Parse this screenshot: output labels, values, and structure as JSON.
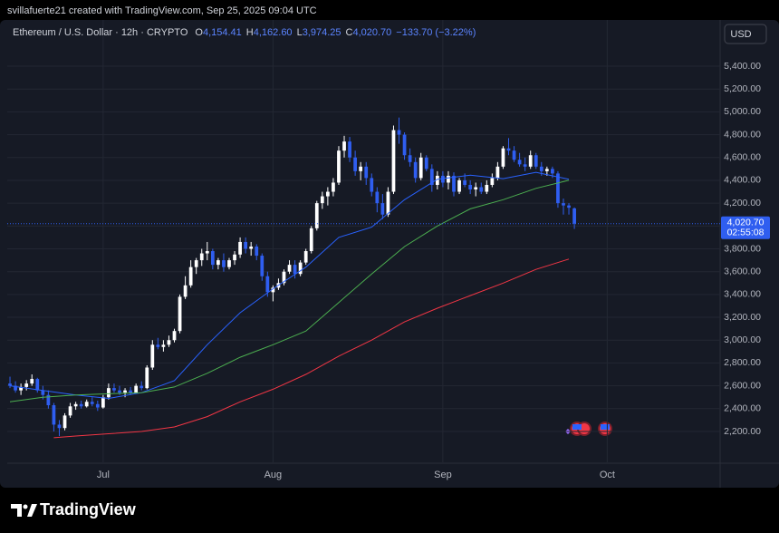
{
  "header": {
    "attribution": "svillafuerte21 created with TradingView.com, Sep 25, 2025 09:04 UTC"
  },
  "chart_data": {
    "type": "candlestick",
    "symbol": "Ethereum / U.S. Dollar · 12h · CRYPTO",
    "ohlc_legend": [
      {
        "key": "O",
        "value": "4,154.41"
      },
      {
        "key": "H",
        "value": "4,162.60"
      },
      {
        "key": "L",
        "value": "3,974.25"
      },
      {
        "key": "C",
        "value": "4,020.70"
      }
    ],
    "change": "−133.70 (−3.22%)",
    "currency": "USD",
    "up_color": "#ffffff",
    "down_color": "#2f5ef0",
    "candles": [
      [
        2620,
        2680,
        2580,
        2600
      ],
      [
        2600,
        2640,
        2540,
        2560
      ],
      [
        2560,
        2620,
        2520,
        2590
      ],
      [
        2590,
        2650,
        2560,
        2620
      ],
      [
        2620,
        2700,
        2600,
        2660
      ],
      [
        2660,
        2670,
        2540,
        2560
      ],
      [
        2560,
        2600,
        2480,
        2520
      ],
      [
        2520,
        2560,
        2400,
        2430
      ],
      [
        2430,
        2450,
        2200,
        2260
      ],
      [
        2260,
        2300,
        2160,
        2230
      ],
      [
        2230,
        2360,
        2210,
        2340
      ],
      [
        2340,
        2450,
        2320,
        2420
      ],
      [
        2420,
        2460,
        2390,
        2440
      ],
      [
        2440,
        2470,
        2400,
        2420
      ],
      [
        2420,
        2480,
        2410,
        2460
      ],
      [
        2460,
        2500,
        2420,
        2440
      ],
      [
        2440,
        2470,
        2380,
        2410
      ],
      [
        2410,
        2520,
        2400,
        2500
      ],
      [
        2500,
        2620,
        2480,
        2580
      ],
      [
        2580,
        2620,
        2540,
        2560
      ],
      [
        2560,
        2600,
        2520,
        2540
      ],
      [
        2540,
        2580,
        2500,
        2560
      ],
      [
        2560,
        2590,
        2520,
        2540
      ],
      [
        2540,
        2620,
        2530,
        2600
      ],
      [
        2600,
        2640,
        2560,
        2580
      ],
      [
        2580,
        2780,
        2570,
        2760
      ],
      [
        2760,
        3000,
        2740,
        2960
      ],
      [
        2960,
        3020,
        2920,
        2940
      ],
      [
        2940,
        3000,
        2900,
        2960
      ],
      [
        2960,
        3040,
        2940,
        3000
      ],
      [
        3000,
        3100,
        2980,
        3080
      ],
      [
        3080,
        3400,
        3060,
        3380
      ],
      [
        3380,
        3560,
        3360,
        3480
      ],
      [
        3480,
        3700,
        3460,
        3640
      ],
      [
        3640,
        3720,
        3580,
        3700
      ],
      [
        3700,
        3800,
        3650,
        3760
      ],
      [
        3760,
        3860,
        3700,
        3780
      ],
      [
        3780,
        3800,
        3620,
        3660
      ],
      [
        3660,
        3720,
        3620,
        3700
      ],
      [
        3700,
        3760,
        3600,
        3640
      ],
      [
        3640,
        3720,
        3620,
        3700
      ],
      [
        3700,
        3780,
        3660,
        3750
      ],
      [
        3750,
        3900,
        3720,
        3860
      ],
      [
        3860,
        3900,
        3760,
        3800
      ],
      [
        3800,
        3860,
        3740,
        3820
      ],
      [
        3820,
        3840,
        3700,
        3740
      ],
      [
        3740,
        3760,
        3520,
        3560
      ],
      [
        3560,
        3600,
        3380,
        3420
      ],
      [
        3420,
        3480,
        3340,
        3460
      ],
      [
        3460,
        3540,
        3440,
        3500
      ],
      [
        3500,
        3620,
        3480,
        3600
      ],
      [
        3600,
        3700,
        3580,
        3660
      ],
      [
        3660,
        3700,
        3540,
        3580
      ],
      [
        3580,
        3700,
        3560,
        3680
      ],
      [
        3680,
        3800,
        3660,
        3780
      ],
      [
        3780,
        4000,
        3760,
        3980
      ],
      [
        3980,
        4220,
        3960,
        4200
      ],
      [
        4200,
        4300,
        4150,
        4260
      ],
      [
        4260,
        4340,
        4180,
        4300
      ],
      [
        4300,
        4420,
        4260,
        4380
      ],
      [
        4380,
        4700,
        4360,
        4660
      ],
      [
        4660,
        4790,
        4600,
        4740
      ],
      [
        4740,
        4780,
        4560,
        4600
      ],
      [
        4600,
        4660,
        4440,
        4480
      ],
      [
        4480,
        4560,
        4400,
        4520
      ],
      [
        4520,
        4560,
        4360,
        4420
      ],
      [
        4420,
        4460,
        4260,
        4300
      ],
      [
        4300,
        4340,
        4120,
        4200
      ],
      [
        4200,
        4280,
        4060,
        4100
      ],
      [
        4100,
        4340,
        4080,
        4300
      ],
      [
        4300,
        4880,
        4280,
        4840
      ],
      [
        4840,
        4950,
        4720,
        4800
      ],
      [
        4800,
        4820,
        4580,
        4620
      ],
      [
        4620,
        4680,
        4520,
        4560
      ],
      [
        4560,
        4600,
        4380,
        4420
      ],
      [
        4420,
        4640,
        4400,
        4600
      ],
      [
        4600,
        4620,
        4480,
        4500
      ],
      [
        4500,
        4540,
        4300,
        4360
      ],
      [
        4360,
        4480,
        4320,
        4440
      ],
      [
        4440,
        4480,
        4340,
        4380
      ],
      [
        4380,
        4480,
        4320,
        4440
      ],
      [
        4440,
        4470,
        4260,
        4300
      ],
      [
        4300,
        4420,
        4280,
        4400
      ],
      [
        4400,
        4460,
        4340,
        4360
      ],
      [
        4360,
        4400,
        4280,
        4320
      ],
      [
        4320,
        4380,
        4260,
        4340
      ],
      [
        4340,
        4380,
        4280,
        4300
      ],
      [
        4300,
        4400,
        4280,
        4360
      ],
      [
        4360,
        4460,
        4340,
        4420
      ],
      [
        4420,
        4560,
        4400,
        4520
      ],
      [
        4520,
        4700,
        4500,
        4680
      ],
      [
        4680,
        4770,
        4620,
        4660
      ],
      [
        4660,
        4700,
        4560,
        4580
      ],
      [
        4580,
        4640,
        4520,
        4540
      ],
      [
        4540,
        4600,
        4480,
        4520
      ],
      [
        4520,
        4660,
        4500,
        4620
      ],
      [
        4620,
        4640,
        4500,
        4520
      ],
      [
        4520,
        4560,
        4440,
        4480
      ],
      [
        4480,
        4520,
        4440,
        4500
      ],
      [
        4500,
        4520,
        4420,
        4460
      ],
      [
        4460,
        4480,
        4160,
        4200
      ],
      [
        4200,
        4240,
        4100,
        4180
      ],
      [
        4180,
        4200,
        4100,
        4160
      ],
      [
        4154.41,
        4162.6,
        3974.25,
        4020.7
      ]
    ],
    "series": [
      {
        "color": "#2962ff",
        "x": [
          0,
          6,
          12,
          18,
          24,
          30,
          36,
          42,
          48,
          54,
          60,
          66,
          72,
          78,
          84,
          90,
          96,
          102
        ],
        "values": [
          2600,
          2560,
          2520,
          2490,
          2540,
          2645,
          2960,
          3240,
          3450,
          3640,
          3900,
          3990,
          4230,
          4410,
          4445,
          4415,
          4470,
          4410
        ]
      },
      {
        "color": "#4caf50",
        "x": [
          0,
          6,
          12,
          18,
          24,
          30,
          36,
          42,
          48,
          54,
          60,
          66,
          72,
          78,
          84,
          90,
          96,
          102
        ],
        "values": [
          2460,
          2500,
          2520,
          2530,
          2540,
          2590,
          2710,
          2850,
          2960,
          3080,
          3330,
          3580,
          3820,
          4000,
          4150,
          4230,
          4330,
          4400
        ]
      },
      {
        "color": "#f23645",
        "x": [
          8,
          12,
          18,
          24,
          30,
          36,
          42,
          48,
          54,
          60,
          66,
          72,
          78,
          84,
          90,
          96,
          102
        ],
        "values": [
          2145,
          2160,
          2180,
          2200,
          2240,
          2330,
          2460,
          2570,
          2700,
          2860,
          3000,
          3160,
          3280,
          3390,
          3500,
          3620,
          3710
        ]
      }
    ],
    "xlim": [
      -0.5,
      129.6
    ],
    "xticks": [
      {
        "value": 17,
        "label": "Jul"
      },
      {
        "value": 48,
        "label": "Aug"
      },
      {
        "value": 79,
        "label": "Sep"
      },
      {
        "value": 109,
        "label": "Oct"
      }
    ],
    "ylim": [
      1930,
      5805
    ],
    "yticks": [
      {
        "value": 2200,
        "label": "2,200.00"
      },
      {
        "value": 2400,
        "label": "2,400.00"
      },
      {
        "value": 2600,
        "label": "2,600.00"
      },
      {
        "value": 2800,
        "label": "2,800.00"
      },
      {
        "value": 3000,
        "label": "3,000.00"
      },
      {
        "value": 3200,
        "label": "3,200.00"
      },
      {
        "value": 3400,
        "label": "3,400.00"
      },
      {
        "value": 3600,
        "label": "3,600.00"
      },
      {
        "value": 3800,
        "label": "3,800.00"
      },
      {
        "value": 4000,
        "label": "4,000.00"
      },
      {
        "value": 4200,
        "label": "4,200.00"
      },
      {
        "value": 4400,
        "label": "4,400.00"
      },
      {
        "value": 4600,
        "label": "4,600.00"
      },
      {
        "value": 4800,
        "label": "4,800.00"
      },
      {
        "value": 5000,
        "label": "5,000.00"
      },
      {
        "value": 5200,
        "label": "5,200.00"
      },
      {
        "value": 5400,
        "label": "5,400.00"
      }
    ],
    "grid": true,
    "last_price": {
      "value": 4020.7,
      "label": "4,020.70"
    },
    "countdown": "02:55:08"
  },
  "footer": {
    "brand": "TradingView"
  }
}
